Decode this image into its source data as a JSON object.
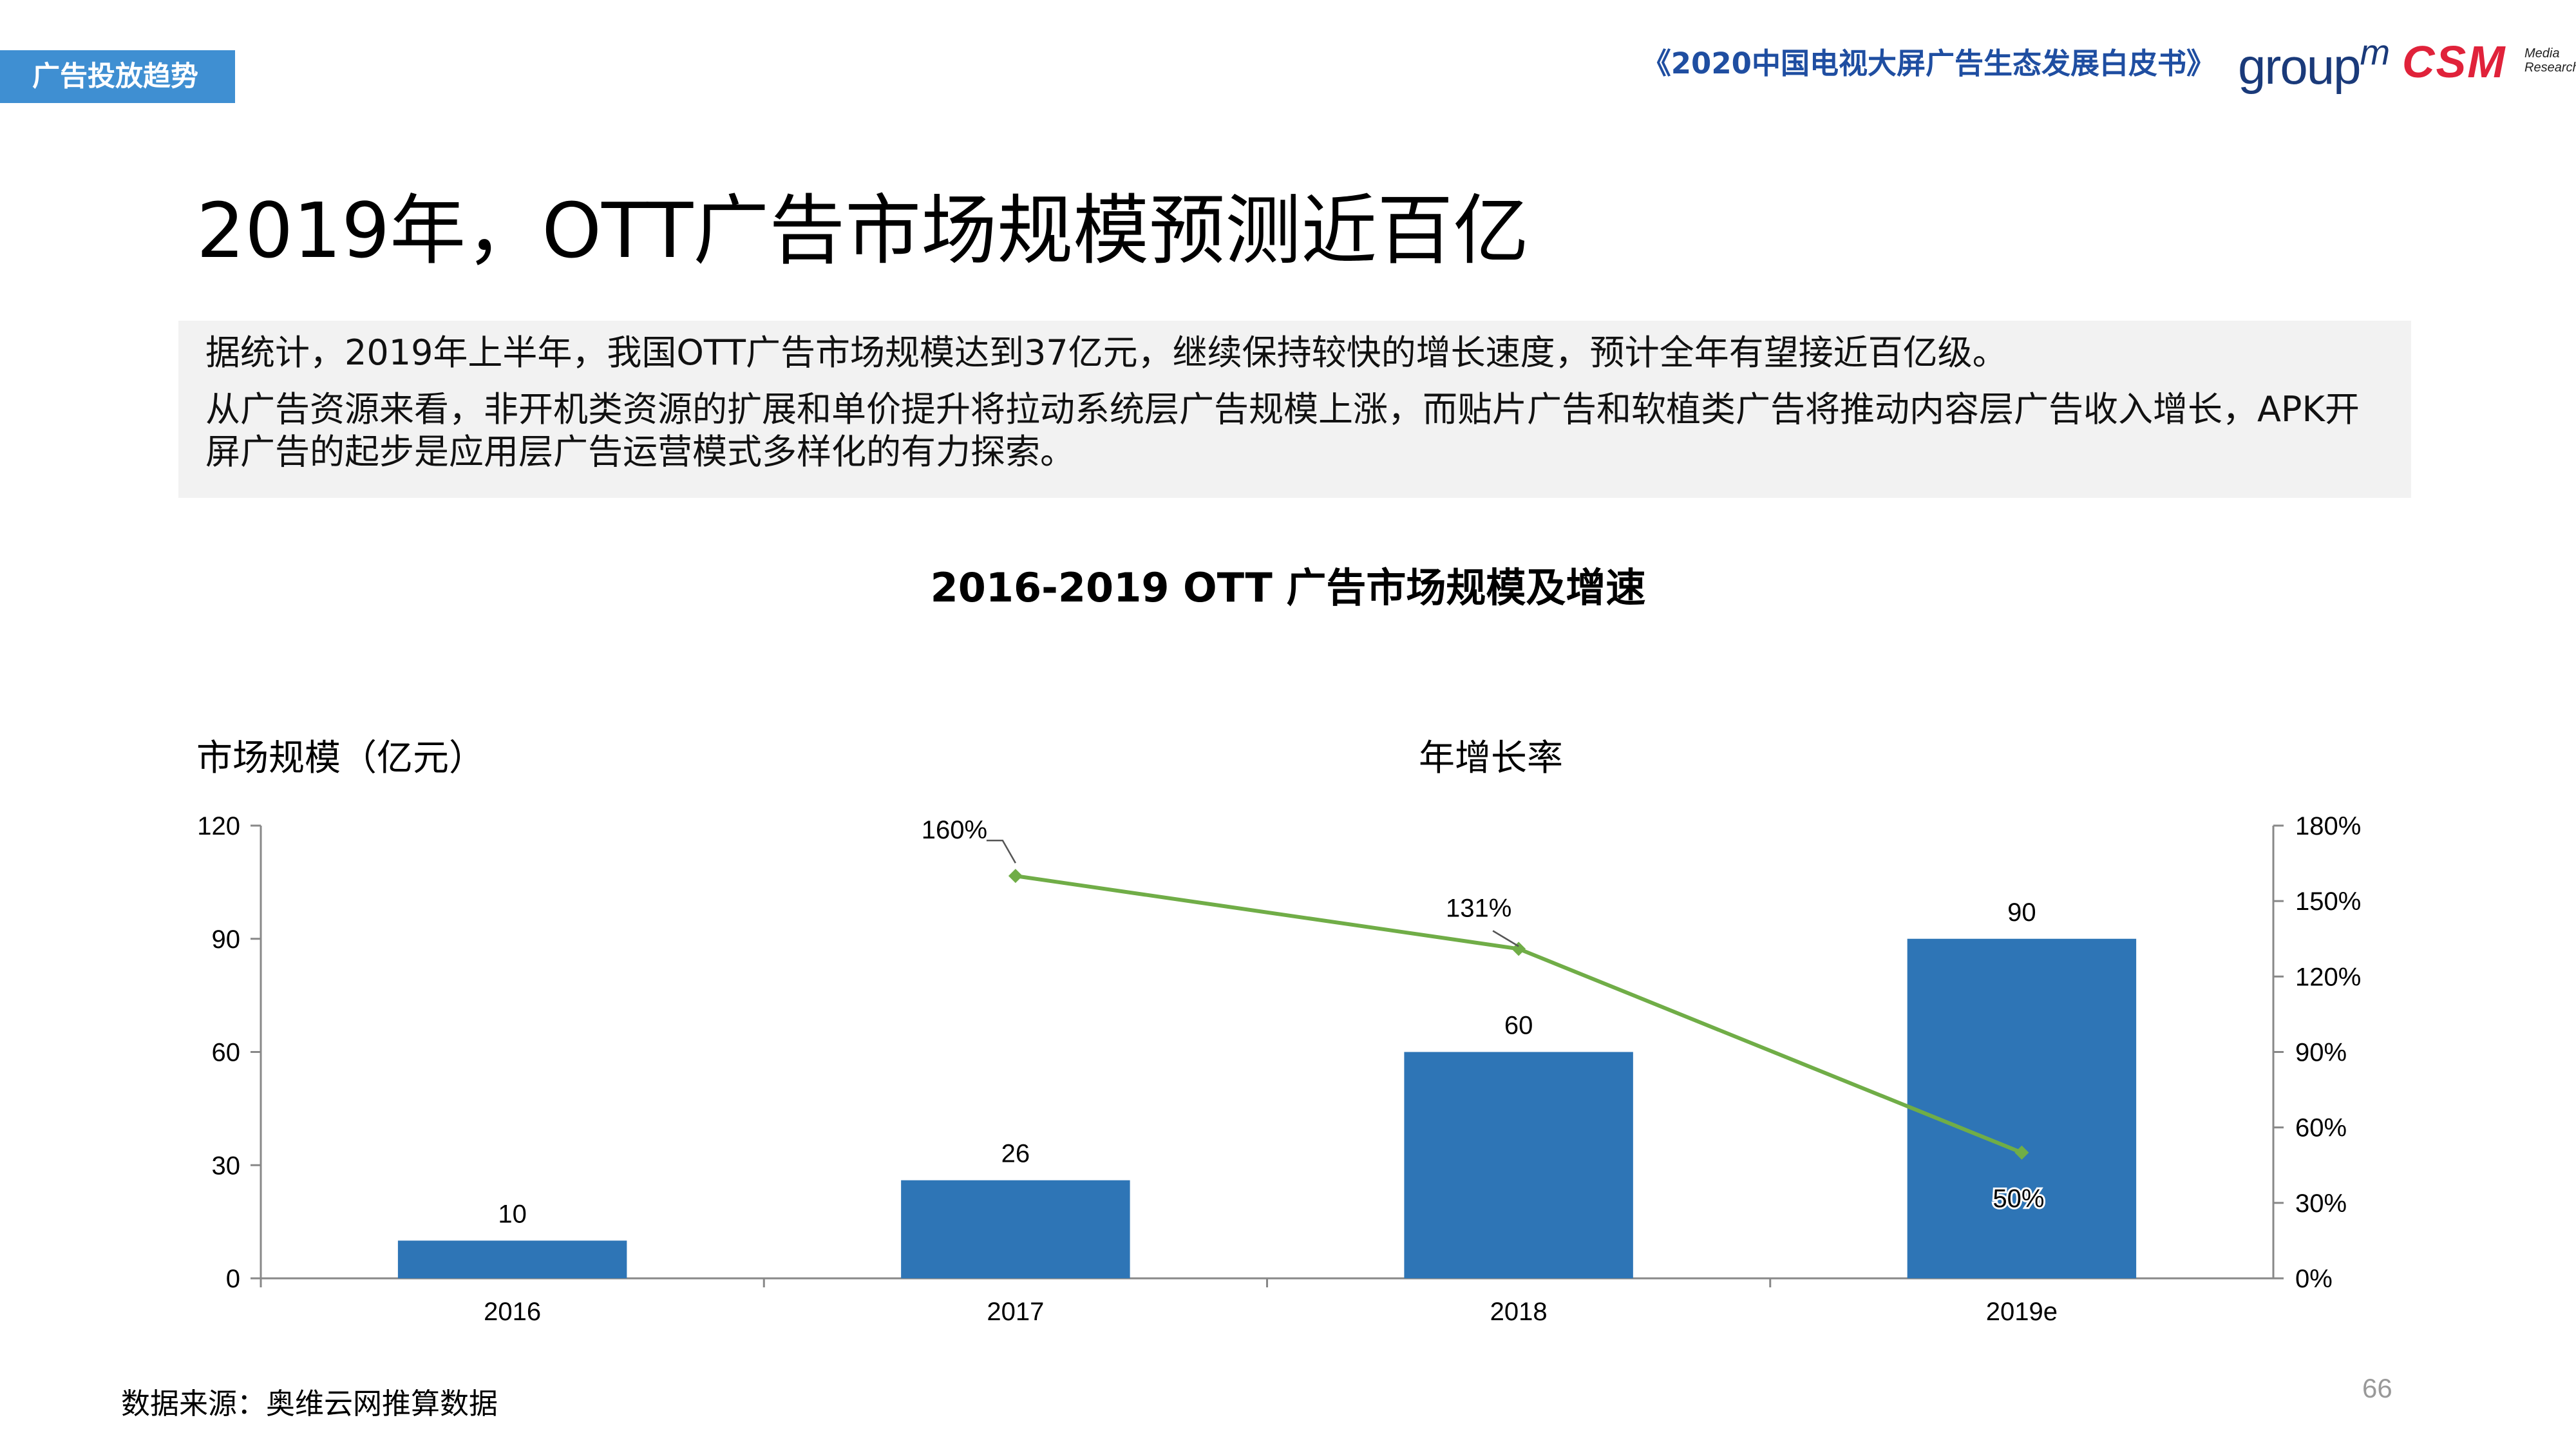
{
  "header": {
    "section_tag": "广告投放趋势",
    "report_title": "《2020中国电视大屏广告生态发展白皮书》",
    "logo_groupm": "group",
    "logo_groupm_sup": "m",
    "logo_csm": "CSM",
    "logo_csm_sub_1": "Media",
    "logo_csm_sub_2": "Research"
  },
  "page_title": "2019年，OTT广告市场规模预测近百亿",
  "summary": {
    "line1": "据统计，2019年上半年，我国OTT广告市场规模达到37亿元，继续保持较快的增长速度，预计全年有望接近百亿级。",
    "line2": "从广告资源来看，非开机类资源的扩展和单价提升将拉动系统层广告规模上涨，而贴片广告和软植类广告将推动内容层广告收入增长，APK开屏广告的起步是应用层广告运营模式多样化的有力探索。"
  },
  "chart_data": {
    "type": "bar",
    "title": "2016-2019 OTT 广告市场规模及增速",
    "left_axis_label": "市场规模（亿元）",
    "right_axis_label": "年增长率",
    "categories": [
      "2016",
      "2017",
      "2018",
      "2019e"
    ],
    "left_ticks": [
      "0",
      "30",
      "60",
      "90",
      "120"
    ],
    "right_ticks": [
      "0%",
      "30%",
      "60%",
      "90%",
      "120%",
      "150%",
      "180%"
    ],
    "ylim_left": [
      0,
      120
    ],
    "ylim_right": [
      0,
      180
    ],
    "bar_color": "#2e75b6",
    "line_color": "#70ad47",
    "series": [
      {
        "kind": "bar",
        "axis": "left",
        "values": [
          10,
          26,
          60,
          90
        ],
        "labels": [
          "10",
          "26",
          "60",
          "90"
        ]
      },
      {
        "kind": "line",
        "axis": "right",
        "values": [
          null,
          160,
          131,
          50
        ],
        "labels": [
          "",
          "160%",
          "131%",
          "50%"
        ]
      }
    ],
    "grid": false
  },
  "footer": {
    "source": "数据来源：奥维云网推算数据",
    "page_number": "66"
  }
}
